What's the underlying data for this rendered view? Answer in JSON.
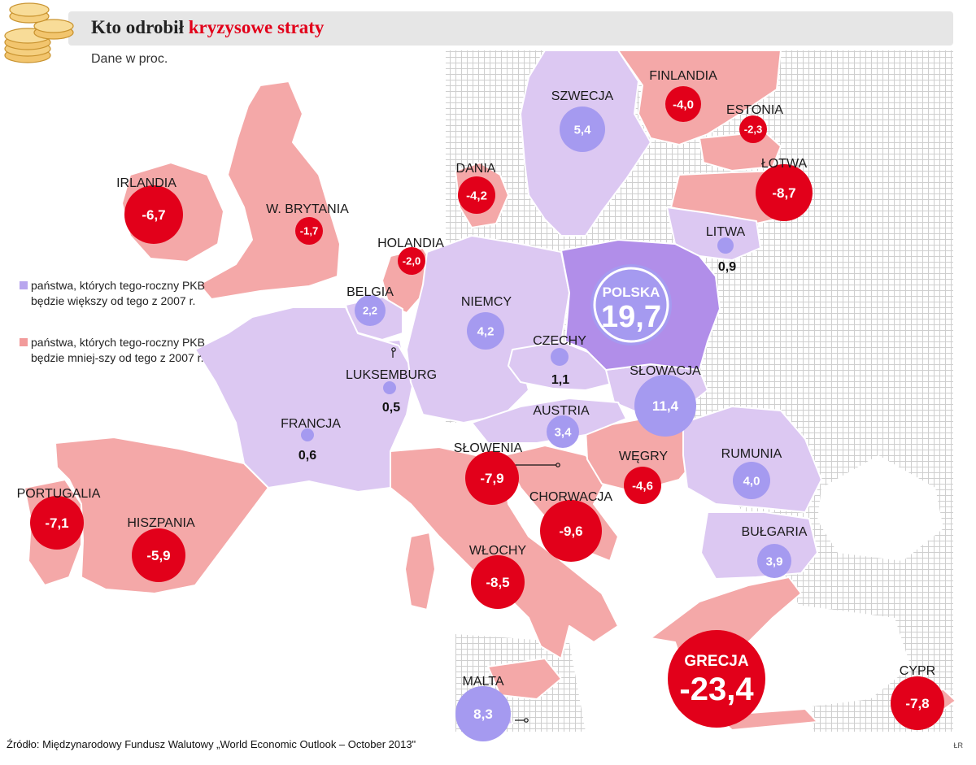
{
  "header": {
    "title_part1": "Kto odrobił ",
    "title_part2": "kryzysowe straty",
    "subtitle": "Dane w proc."
  },
  "legend": {
    "growth_label": "państwa, których tego-roczny PKB będzie większy od tego z 2007 r.",
    "loss_label": "państwa, których tego-roczny PKB będzie mniej-szy od tego z 2007 r."
  },
  "colors": {
    "growth_circle": "#a59af0",
    "growth_land": "#dcc8f2",
    "poland_land": "#b18ee9",
    "loss_circle": "#e2001a",
    "loss_land": "#f4a8a8",
    "grid": "#cfcfcf",
    "sea": "#ffffff"
  },
  "countries": [
    {
      "name": "IRLANDIA",
      "value": "-6,7"
    },
    {
      "name": "W. BRYTANIA",
      "value": "-1,7"
    },
    {
      "name": "HOLANDIA",
      "value": "-2,0"
    },
    {
      "name": "BELGIA",
      "value": "2,2"
    },
    {
      "name": "LUKSEMBURG",
      "value": "0,5"
    },
    {
      "name": "FRANCJA",
      "value": "0,6"
    },
    {
      "name": "PORTUGALIA",
      "value": "-7,1"
    },
    {
      "name": "HISZPANIA",
      "value": "-5,9"
    },
    {
      "name": "NIEMCY",
      "value": "4,2"
    },
    {
      "name": "DANIA",
      "value": "-4,2"
    },
    {
      "name": "SZWECJA",
      "value": "5,4"
    },
    {
      "name": "FINLANDIA",
      "value": "-4,0"
    },
    {
      "name": "ESTONIA",
      "value": "-2,3"
    },
    {
      "name": "ŁOTWA",
      "value": "-8,7"
    },
    {
      "name": "LITWA",
      "value": "0,9"
    },
    {
      "name": "POLSKA",
      "value": "19,7"
    },
    {
      "name": "CZECHY",
      "value": "1,1"
    },
    {
      "name": "SŁOWACJA",
      "value": "11,4"
    },
    {
      "name": "AUSTRIA",
      "value": "3,4"
    },
    {
      "name": "SŁOWENIA",
      "value": "-7,9"
    },
    {
      "name": "WĘGRY",
      "value": "-4,6"
    },
    {
      "name": "CHORWACJA",
      "value": "-9,6"
    },
    {
      "name": "RUMUNIA",
      "value": "4,0"
    },
    {
      "name": "BUŁGARIA",
      "value": "3,9"
    },
    {
      "name": "WŁOCHY",
      "value": "-8,5"
    },
    {
      "name": "GRECJA",
      "value": "-23,4"
    },
    {
      "name": "MALTA",
      "value": "8,3"
    },
    {
      "name": "CYPR",
      "value": "-7,8"
    }
  ],
  "source": "Źródło: Międzynarodowy Fundusz Walutowy „World Economic Outlook – October 2013\"",
  "credit": "ŁR"
}
